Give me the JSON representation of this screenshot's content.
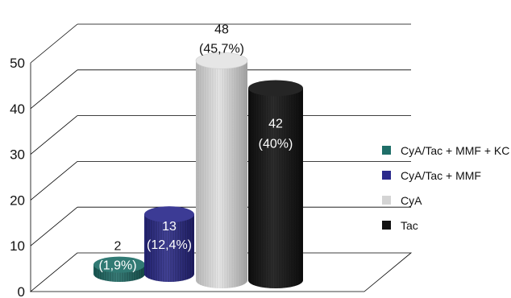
{
  "chart_data": {
    "type": "bar",
    "style": "3d-cylinder",
    "ylim": [
      0,
      50
    ],
    "yticks": [
      "0",
      "10",
      "20",
      "30",
      "40",
      "50"
    ],
    "grid": true,
    "legend_position": "right",
    "series": [
      {
        "name": "CyA/Tac + MMF + KC",
        "value": 2,
        "label_value": "2",
        "label_pct": "(1,9%)",
        "color": "#1f6e68",
        "label_color": "#ffffff",
        "value_color": "#111111"
      },
      {
        "name": "CyA/Tac + MMF",
        "value": 13,
        "label_value": "13",
        "label_pct": "(12,4%)",
        "color": "#2b2a8c",
        "label_color": "#ffffff",
        "value_color": "#ffffff"
      },
      {
        "name": "CyA",
        "value": 48,
        "label_value": "48",
        "label_pct": "(45,7%)",
        "color": "#e4e4e4",
        "label_color": "#111111",
        "value_color": "#111111"
      },
      {
        "name": "Tac",
        "value": 42,
        "label_value": "42",
        "label_pct": "(40%)",
        "color": "#121212",
        "label_color": "#ffffff",
        "value_color": "#ffffff"
      }
    ]
  }
}
